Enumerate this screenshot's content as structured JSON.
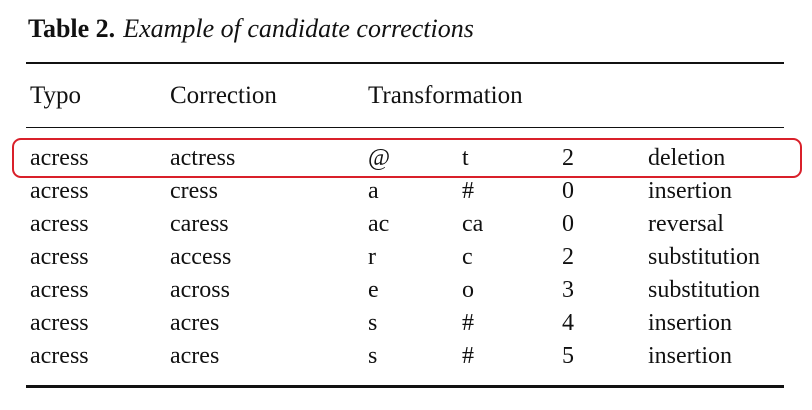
{
  "caption": {
    "label": "Table 2.",
    "title": "Example of candidate corrections"
  },
  "table": {
    "headers": {
      "typo": "Typo",
      "correction": "Correction",
      "transformation": "Transformation"
    },
    "rows": [
      {
        "typo": "acress",
        "correction": "actress",
        "from": "@",
        "to": "t",
        "position": "2",
        "type": "deletion"
      },
      {
        "typo": "acress",
        "correction": "cress",
        "from": "a",
        "to": "#",
        "position": "0",
        "type": "insertion"
      },
      {
        "typo": "acress",
        "correction": "caress",
        "from": "ac",
        "to": "ca",
        "position": "0",
        "type": "reversal"
      },
      {
        "typo": "acress",
        "correction": "access",
        "from": "r",
        "to": "c",
        "position": "2",
        "type": "substitution"
      },
      {
        "typo": "acress",
        "correction": "across",
        "from": "e",
        "to": "o",
        "position": "3",
        "type": "substitution"
      },
      {
        "typo": "acress",
        "correction": "acres",
        "from": "s",
        "to": "#",
        "position": "4",
        "type": "insertion"
      },
      {
        "typo": "acress",
        "correction": "acres",
        "from": "s",
        "to": "#",
        "position": "5",
        "type": "insertion"
      }
    ],
    "highlighted_row": 0,
    "highlight_color": "#d9202a"
  }
}
